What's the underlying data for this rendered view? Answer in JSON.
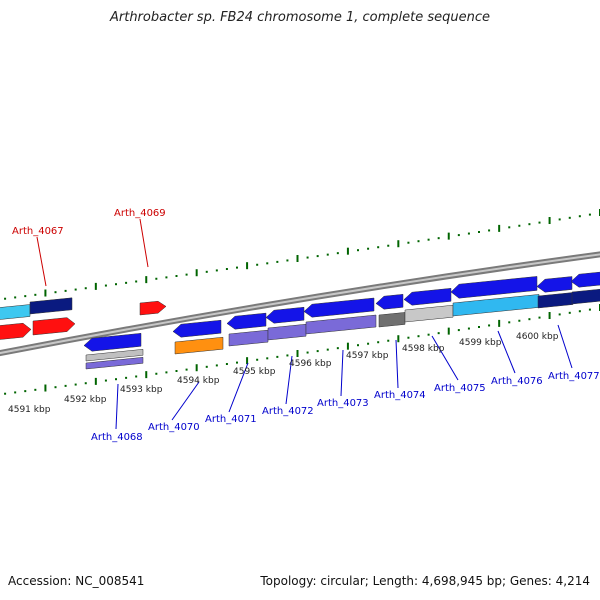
{
  "title": "Arthrobacter sp. FB24 chromosome 1, complete sequence",
  "footer": {
    "accession": "Accession: NC_008541",
    "stats": "Topology: circular; Length: 4,698,945 bp; Genes: 4,214"
  },
  "colors": {
    "forward_label": "#cc0000",
    "reverse_label": "#0000cc",
    "backbone": "#808080",
    "tick": "#006400"
  },
  "scale_labels": [
    "4591 kbp",
    "4592 kbp",
    "4593 kbp",
    "4594 kbp",
    "4595 kbp",
    "4596 kbp",
    "4597 kbp",
    "4598 kbp",
    "4599 kbp",
    "4600 kbp"
  ],
  "forward_labels": [
    "Arth_4067",
    "Arth_4069"
  ],
  "reverse_labels": [
    "Arth_4068",
    "Arth_4070",
    "Arth_4071",
    "Arth_4072",
    "Arth_4073",
    "Arth_4074",
    "Arth_4075",
    "Arth_4076",
    "Arth_4077"
  ],
  "features": [
    {
      "id": "f1",
      "strand": "+",
      "color": "#3ec8f0"
    },
    {
      "id": "f2",
      "strand": "+",
      "color": "#0a1a80"
    },
    {
      "id": "f3",
      "strand": "+",
      "color": "#ff1010"
    },
    {
      "id": "f4",
      "strand": "+",
      "color": "#ff1010"
    },
    {
      "id": "f5",
      "strand": "+",
      "color": "#ff1010"
    },
    {
      "id": "g68a",
      "strand": "-",
      "color": "#1414e8"
    },
    {
      "id": "g68b",
      "strand": "-",
      "color": "#c0c0c0"
    },
    {
      "id": "g68c",
      "strand": "-",
      "color": "#7a6ad8"
    },
    {
      "id": "g70a",
      "strand": "-",
      "color": "#1414e8"
    },
    {
      "id": "g70b",
      "strand": "-",
      "color": "#ff9010"
    },
    {
      "id": "g71a",
      "strand": "-",
      "color": "#1414e8"
    },
    {
      "id": "g71b",
      "strand": "-",
      "color": "#7a6ad8"
    },
    {
      "id": "g72a",
      "strand": "-",
      "color": "#1414e8"
    },
    {
      "id": "g72b",
      "strand": "-",
      "color": "#7a6ad8"
    },
    {
      "id": "g73a",
      "strand": "-",
      "color": "#1414e8"
    },
    {
      "id": "g73b",
      "strand": "-",
      "color": "#7a6ad8"
    },
    {
      "id": "g74a",
      "strand": "-",
      "color": "#1414e8"
    },
    {
      "id": "g74b",
      "strand": "-",
      "color": "#707070"
    },
    {
      "id": "g75a",
      "strand": "-",
      "color": "#1414e8"
    },
    {
      "id": "g75b",
      "strand": "-",
      "color": "#c8c8c8"
    },
    {
      "id": "g76a",
      "strand": "-",
      "color": "#1414e8"
    },
    {
      "id": "g76b",
      "strand": "-",
      "color": "#30b8f0"
    },
    {
      "id": "g77a",
      "strand": "-",
      "color": "#1414e8"
    },
    {
      "id": "g77b",
      "strand": "-",
      "color": "#0a1a80"
    },
    {
      "id": "g78a",
      "strand": "-",
      "color": "#1414e8"
    },
    {
      "id": "g78b",
      "strand": "-",
      "color": "#0a1a80"
    }
  ]
}
